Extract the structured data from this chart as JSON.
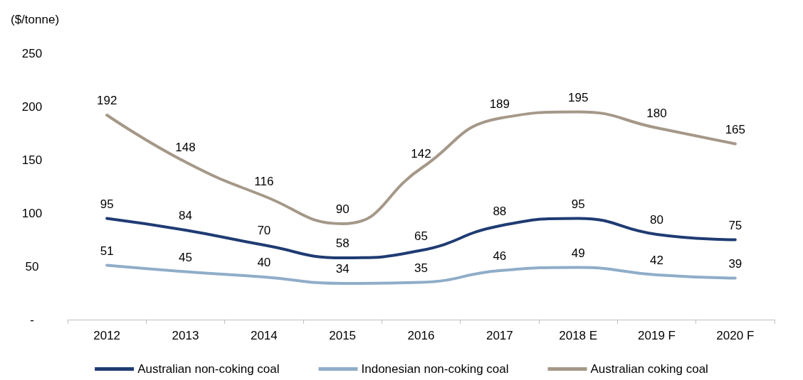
{
  "chart_data": {
    "type": "line",
    "ylabel": "($/tonne)",
    "categories": [
      "2012",
      "2013",
      "2014",
      "2015",
      "2016",
      "2017",
      "2018 E",
      "2019 F",
      "2020 F"
    ],
    "series": [
      {
        "name": "Australian non-coking coal",
        "color": "#1f3b73",
        "values": [
          95,
          84,
          70,
          58,
          65,
          88,
          95,
          80,
          75
        ]
      },
      {
        "name": "Indonesian non-coking coal",
        "color": "#8fadc8",
        "values": [
          51,
          45,
          40,
          34,
          35,
          46,
          49,
          42,
          39
        ]
      },
      {
        "name": "Australian coking coal",
        "color": "#a59888",
        "values": [
          192,
          148,
          116,
          90,
          142,
          189,
          195,
          180,
          165
        ]
      }
    ],
    "ylim": [
      0,
      250
    ],
    "yticks": [
      {
        "value": 0,
        "label": "-"
      },
      50,
      100,
      150,
      200,
      250
    ],
    "data_labels": true,
    "grid": false,
    "legend": "bottom",
    "marker": "none",
    "line_style": "solid"
  }
}
